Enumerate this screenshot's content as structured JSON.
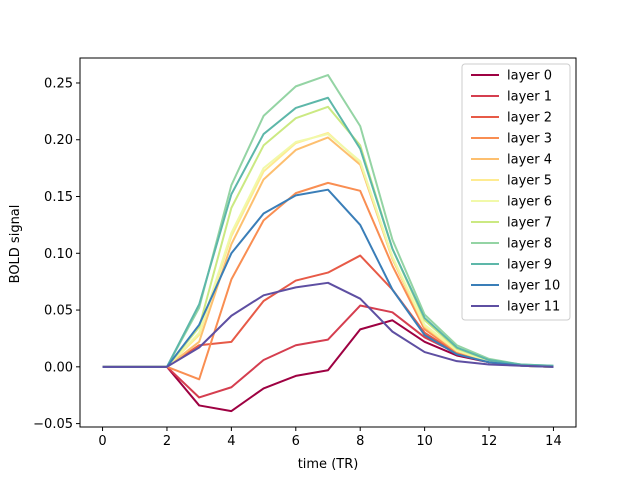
{
  "chart_data": {
    "type": "line",
    "title": "",
    "xlabel": "time (TR)",
    "ylabel": "BOLD signal",
    "xlim": [
      -0.7,
      14.7
    ],
    "ylim": [
      -0.053,
      0.272
    ],
    "xticks": [
      "0",
      "2",
      "4",
      "6",
      "8",
      "10",
      "12",
      "14"
    ],
    "yticks": [
      "−0.05",
      "0.00",
      "0.05",
      "0.10",
      "0.15",
      "0.20",
      "0.25"
    ],
    "grid": false,
    "legend_position": "upper right",
    "x": [
      0,
      1,
      2,
      3,
      4,
      5,
      6,
      7,
      8,
      9,
      10,
      11,
      12,
      13,
      14
    ],
    "series": [
      {
        "name": "layer 0",
        "color": "#9e0142",
        "values": [
          0,
          0,
          0,
          -0.034,
          -0.039,
          -0.019,
          -0.008,
          -0.003,
          0.033,
          0.041,
          0.022,
          0.01,
          0.004,
          0.001,
          0
        ]
      },
      {
        "name": "layer 1",
        "color": "#d53e4f",
        "values": [
          0,
          0,
          0,
          -0.027,
          -0.018,
          0.006,
          0.019,
          0.024,
          0.054,
          0.048,
          0.026,
          0.012,
          0.004,
          0.001,
          0
        ]
      },
      {
        "name": "layer 2",
        "color": "#e75a47",
        "values": [
          0,
          0,
          0,
          0.019,
          0.022,
          0.058,
          0.076,
          0.083,
          0.098,
          0.068,
          0.03,
          0.012,
          0.004,
          0.001,
          0
        ]
      },
      {
        "name": "layer 3",
        "color": "#f98e52",
        "values": [
          0,
          0,
          0,
          -0.011,
          0.077,
          0.129,
          0.153,
          0.162,
          0.155,
          0.089,
          0.033,
          0.013,
          0.005,
          0.001,
          0
        ]
      },
      {
        "name": "layer 4",
        "color": "#fdbf6f",
        "values": [
          0,
          0,
          0,
          0.022,
          0.108,
          0.165,
          0.191,
          0.202,
          0.178,
          0.095,
          0.035,
          0.014,
          0.005,
          0.001,
          0
        ]
      },
      {
        "name": "layer 5",
        "color": "#feeb91",
        "values": [
          0,
          0,
          0,
          0.028,
          0.115,
          0.172,
          0.197,
          0.206,
          0.18,
          0.096,
          0.036,
          0.014,
          0.005,
          0.001,
          0
        ]
      },
      {
        "name": "layer 6",
        "color": "#f1f9a9",
        "values": [
          0,
          0,
          0,
          0.03,
          0.118,
          0.175,
          0.198,
          0.205,
          0.181,
          0.097,
          0.037,
          0.015,
          0.005,
          0.001,
          0
        ]
      },
      {
        "name": "layer 7",
        "color": "#cbe982",
        "values": [
          0,
          0,
          0,
          0.035,
          0.14,
          0.195,
          0.219,
          0.229,
          0.195,
          0.104,
          0.041,
          0.016,
          0.006,
          0.001,
          0
        ]
      },
      {
        "name": "layer 8",
        "color": "#94d4a4",
        "values": [
          0,
          0,
          0,
          0.052,
          0.16,
          0.221,
          0.247,
          0.257,
          0.212,
          0.112,
          0.046,
          0.019,
          0.007,
          0.002,
          0.001
        ]
      },
      {
        "name": "layer 9",
        "color": "#5db7a9",
        "values": [
          0,
          0,
          0,
          0.055,
          0.152,
          0.205,
          0.228,
          0.237,
          0.192,
          0.104,
          0.043,
          0.017,
          0.006,
          0.002,
          0.001
        ]
      },
      {
        "name": "layer 10",
        "color": "#3a7eb8",
        "values": [
          0,
          0,
          0,
          0.037,
          0.1,
          0.135,
          0.151,
          0.156,
          0.125,
          0.068,
          0.028,
          0.011,
          0.004,
          0.001,
          0
        ]
      },
      {
        "name": "layer 11",
        "color": "#5e4fa2",
        "values": [
          0,
          0,
          0,
          0.017,
          0.045,
          0.063,
          0.07,
          0.074,
          0.06,
          0.031,
          0.013,
          0.005,
          0.002,
          0.001,
          0
        ]
      }
    ]
  }
}
